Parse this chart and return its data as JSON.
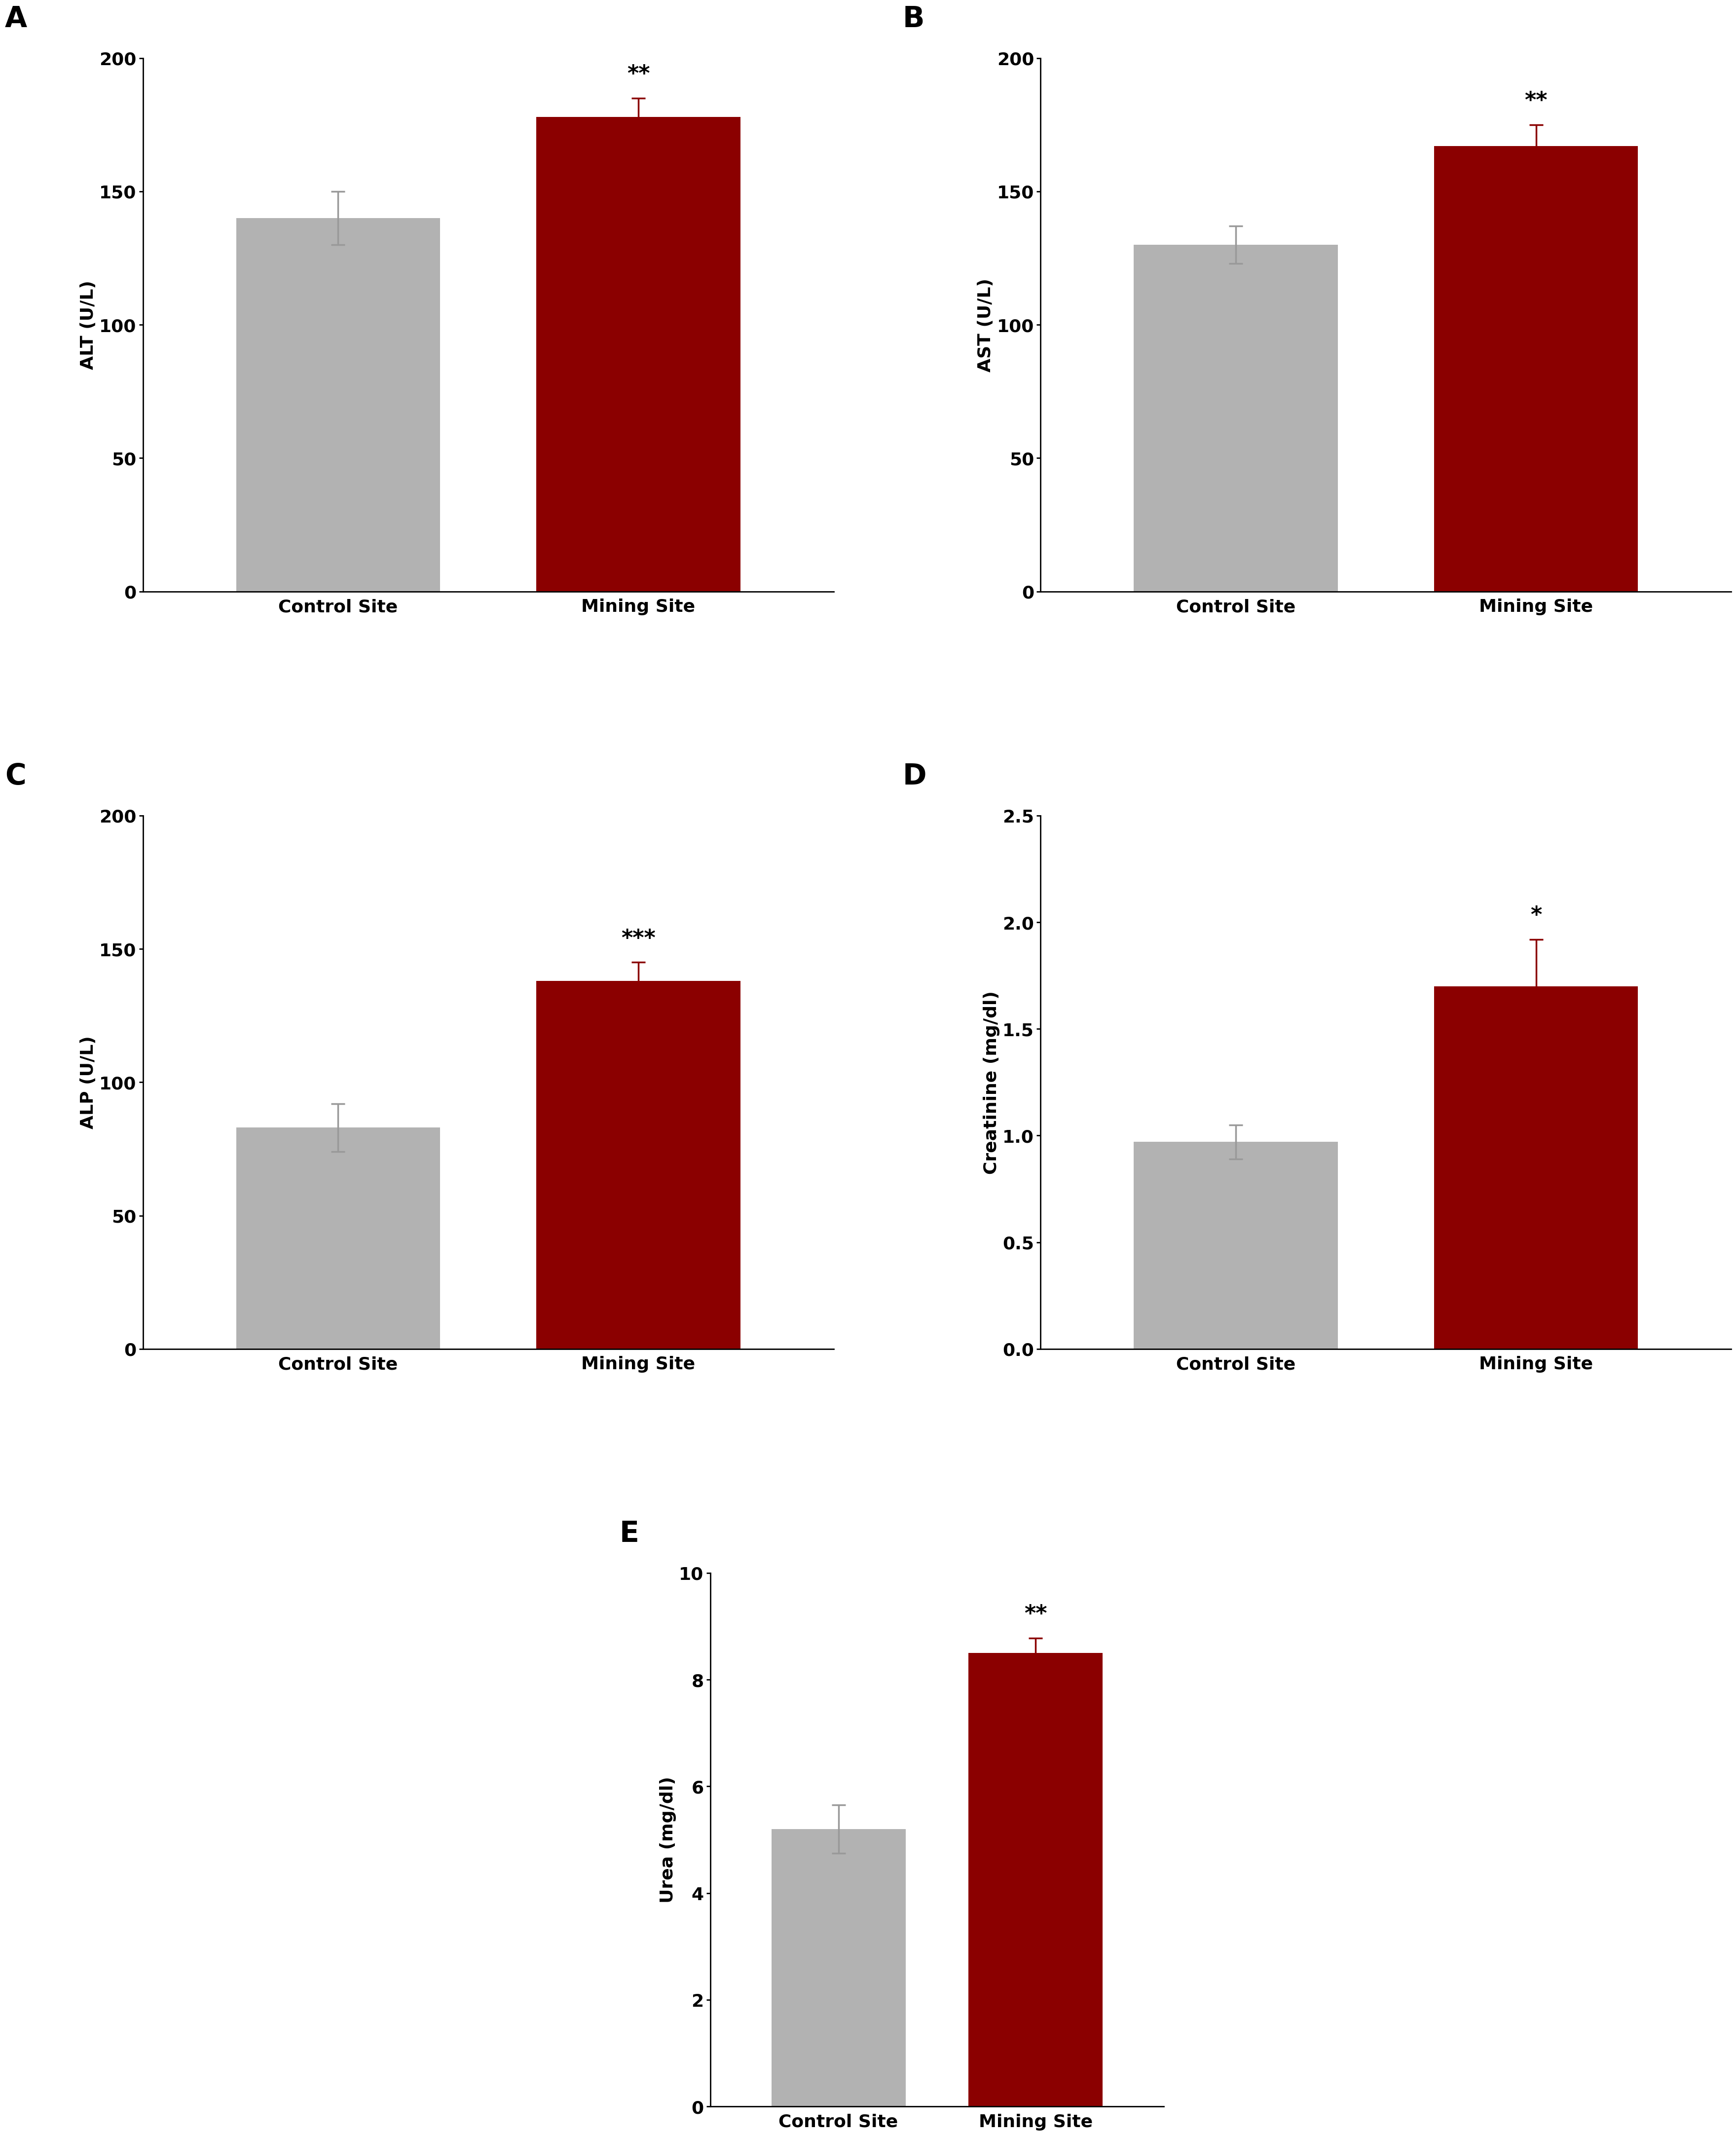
{
  "panels": [
    {
      "label": "A",
      "ylabel": "ALT (U/L)",
      "ylim": [
        0,
        200
      ],
      "yticks": [
        0,
        50,
        100,
        150,
        200
      ],
      "categories": [
        "Control Site",
        "Mining Site"
      ],
      "values": [
        140,
        178
      ],
      "errors": [
        10,
        7
      ],
      "significance": "**",
      "bar_colors": [
        "#b2b2b2",
        "#8b0000"
      ]
    },
    {
      "label": "B",
      "ylabel": "AST (U/L)",
      "ylim": [
        0,
        200
      ],
      "yticks": [
        0,
        50,
        100,
        150,
        200
      ],
      "categories": [
        "Control Site",
        "Mining Site"
      ],
      "values": [
        130,
        167
      ],
      "errors": [
        7,
        8
      ],
      "significance": "**",
      "bar_colors": [
        "#b2b2b2",
        "#8b0000"
      ]
    },
    {
      "label": "C",
      "ylabel": "ALP (U/L)",
      "ylim": [
        0,
        200
      ],
      "yticks": [
        0,
        50,
        100,
        150,
        200
      ],
      "categories": [
        "Control Site",
        "Mining Site"
      ],
      "values": [
        83,
        138
      ],
      "errors": [
        9,
        7
      ],
      "significance": "***",
      "bar_colors": [
        "#b2b2b2",
        "#8b0000"
      ]
    },
    {
      "label": "D",
      "ylabel": "Creatinine (mg/dl)",
      "ylim": [
        0.0,
        2.5
      ],
      "yticks": [
        0.0,
        0.5,
        1.0,
        1.5,
        2.0,
        2.5
      ],
      "categories": [
        "Control Site",
        "Mining Site"
      ],
      "values": [
        0.97,
        1.7
      ],
      "errors": [
        0.08,
        0.22
      ],
      "significance": "*",
      "bar_colors": [
        "#b2b2b2",
        "#8b0000"
      ]
    },
    {
      "label": "E",
      "ylabel": "Urea (mg/dl)",
      "ylim": [
        0,
        10
      ],
      "yticks": [
        0,
        2,
        4,
        6,
        8,
        10
      ],
      "categories": [
        "Control Site",
        "Mining Site"
      ],
      "values": [
        5.2,
        8.5
      ],
      "errors": [
        0.45,
        0.28
      ],
      "significance": "**",
      "bar_colors": [
        "#b2b2b2",
        "#8b0000"
      ]
    }
  ],
  "background_color": "#ffffff",
  "panel_label_fontsize": 42,
  "tick_fontsize": 26,
  "ylabel_fontsize": 26,
  "xlabel_fontsize": 26,
  "sig_fontsize": 32,
  "bar_width": 0.68,
  "error_color_control": "#999999",
  "error_color_mining": "#8b0000",
  "error_linewidth": 2.5,
  "error_capsize": 10,
  "spine_linewidth": 2.0
}
